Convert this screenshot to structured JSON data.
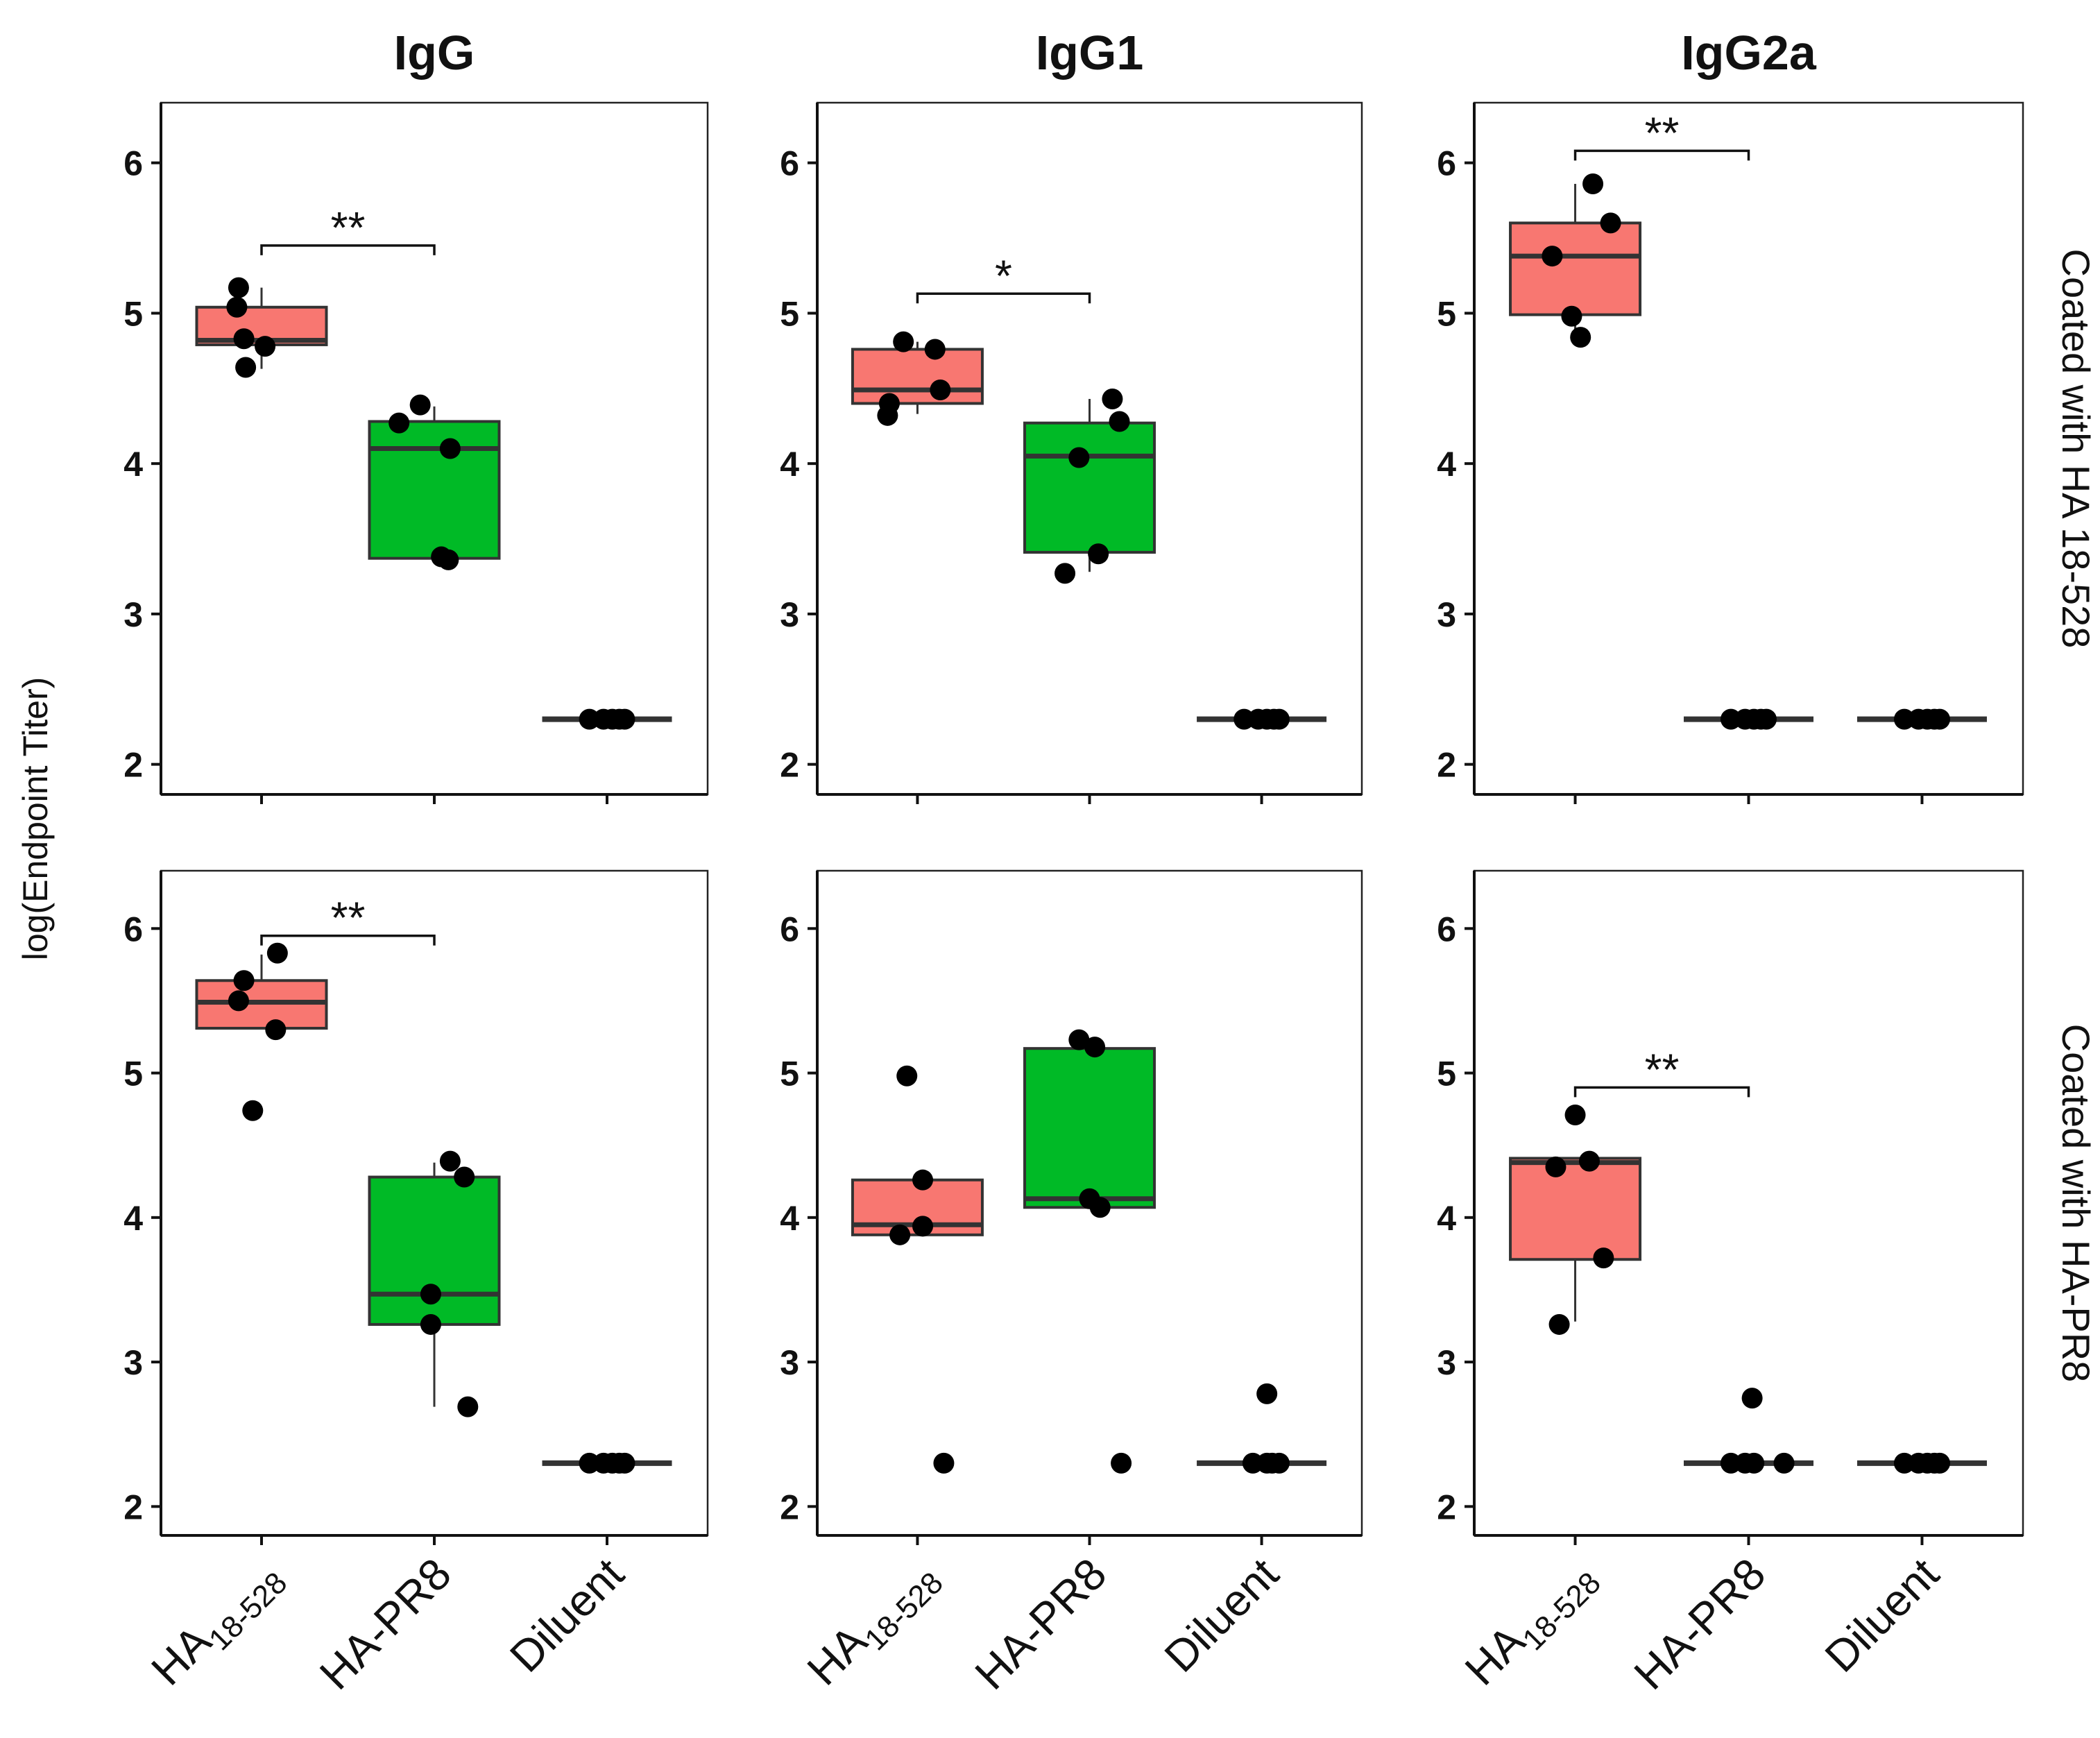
{
  "chart_data": {
    "type": "box",
    "y_label": "log(Endpoint Titer)",
    "ylim": [
      1.8,
      6.4
    ],
    "yticks": [
      "2",
      "3",
      "4",
      "5",
      "6"
    ],
    "categories": [
      {
        "main": "HA",
        "sub": "18-528"
      },
      {
        "main": "HA-PR8",
        "sub": ""
      },
      {
        "main": "Diluent",
        "sub": ""
      }
    ],
    "column_titles": [
      "IgG",
      "IgG1",
      "IgG2a"
    ],
    "row_labels": [
      "Coated with HA 18-528",
      "Coated with HA-PR8"
    ],
    "fill_colors": [
      "#f87771",
      "#00ba26",
      "#f87771"
    ],
    "panels": [
      {
        "row": 0,
        "col": 0,
        "groups": [
          {
            "q1": 4.79,
            "median": 4.82,
            "q3": 5.04,
            "whisker_low": 4.63,
            "whisker_high": 5.17,
            "points": [
              [
                -0.13,
                5.17
              ],
              [
                -0.14,
                5.04
              ],
              [
                -0.1,
                4.83
              ],
              [
                0.02,
                4.78
              ],
              [
                -0.09,
                4.64
              ]
            ]
          },
          {
            "q1": 3.37,
            "median": 4.1,
            "q3": 4.28,
            "whisker_low": 3.35,
            "whisker_high": 4.38,
            "points": [
              [
                -0.2,
                4.27
              ],
              [
                -0.08,
                4.39
              ],
              [
                0.09,
                4.1
              ],
              [
                0.04,
                3.38
              ],
              [
                0.08,
                3.36
              ]
            ]
          },
          {
            "q1": 2.3,
            "median": 2.3,
            "q3": 2.3,
            "whisker_low": 2.3,
            "whisker_high": 2.3,
            "points": [
              [
                -0.1,
                2.3
              ],
              [
                -0.02,
                2.3
              ],
              [
                0.03,
                2.3
              ],
              [
                0.07,
                2.3
              ],
              [
                0.1,
                2.3
              ]
            ]
          }
        ],
        "significance": [
          {
            "from": 0,
            "to": 1,
            "y": 5.45,
            "label": "**"
          }
        ]
      },
      {
        "row": 0,
        "col": 1,
        "groups": [
          {
            "q1": 4.4,
            "median": 4.49,
            "q3": 4.76,
            "whisker_low": 4.33,
            "whisker_high": 4.81,
            "points": [
              [
                -0.16,
                4.4
              ],
              [
                -0.08,
                4.81
              ],
              [
                0.1,
                4.76
              ],
              [
                0.13,
                4.49
              ],
              [
                -0.17,
                4.32
              ]
            ]
          },
          {
            "q1": 3.41,
            "median": 4.05,
            "q3": 4.27,
            "whisker_low": 3.28,
            "whisker_high": 4.43,
            "points": [
              [
                -0.06,
                4.04
              ],
              [
                0.13,
                4.43
              ],
              [
                0.17,
                4.28
              ],
              [
                0.05,
                3.4
              ],
              [
                -0.14,
                3.27
              ]
            ]
          },
          {
            "q1": 2.3,
            "median": 2.3,
            "q3": 2.3,
            "whisker_low": 2.3,
            "whisker_high": 2.3,
            "points": [
              [
                -0.1,
                2.3
              ],
              [
                -0.02,
                2.3
              ],
              [
                0.03,
                2.3
              ],
              [
                0.07,
                2.3
              ],
              [
                0.1,
                2.3
              ]
            ]
          }
        ],
        "significance": [
          {
            "from": 0,
            "to": 1,
            "y": 5.13,
            "label": "*"
          }
        ]
      },
      {
        "row": 0,
        "col": 2,
        "groups": [
          {
            "q1": 4.99,
            "median": 5.38,
            "q3": 5.6,
            "whisker_low": 4.84,
            "whisker_high": 5.86,
            "points": [
              [
                -0.13,
                5.38
              ],
              [
                0.1,
                5.86
              ],
              [
                0.2,
                5.6
              ],
              [
                -0.02,
                4.98
              ],
              [
                0.03,
                4.84
              ]
            ]
          },
          {
            "q1": 2.3,
            "median": 2.3,
            "q3": 2.3,
            "whisker_low": 2.3,
            "whisker_high": 2.3,
            "points": [
              [
                -0.1,
                2.3
              ],
              [
                -0.02,
                2.3
              ],
              [
                0.03,
                2.3
              ],
              [
                0.07,
                2.3
              ],
              [
                0.1,
                2.3
              ]
            ]
          },
          {
            "q1": 2.3,
            "median": 2.3,
            "q3": 2.3,
            "whisker_low": 2.3,
            "whisker_high": 2.3,
            "points": [
              [
                -0.1,
                2.3
              ],
              [
                -0.02,
                2.3
              ],
              [
                0.03,
                2.3
              ],
              [
                0.07,
                2.3
              ],
              [
                0.1,
                2.3
              ]
            ]
          }
        ],
        "significance": [
          {
            "from": 0,
            "to": 1,
            "y": 6.08,
            "label": "**"
          }
        ]
      },
      {
        "row": 1,
        "col": 0,
        "groups": [
          {
            "q1": 5.31,
            "median": 5.49,
            "q3": 5.64,
            "whisker_low": 5.31,
            "whisker_high": 5.82,
            "points": [
              [
                -0.1,
                5.64
              ],
              [
                0.09,
                5.83
              ],
              [
                -0.13,
                5.5
              ],
              [
                0.08,
                5.3
              ],
              [
                -0.05,
                4.74
              ]
            ]
          },
          {
            "q1": 3.26,
            "median": 3.47,
            "q3": 4.28,
            "whisker_low": 2.69,
            "whisker_high": 4.38,
            "points": [
              [
                0.09,
                4.39
              ],
              [
                0.17,
                4.28
              ],
              [
                -0.02,
                3.47
              ],
              [
                -0.02,
                3.26
              ],
              [
                0.19,
                2.69
              ]
            ]
          },
          {
            "q1": 2.3,
            "median": 2.3,
            "q3": 2.3,
            "whisker_low": 2.3,
            "whisker_high": 2.3,
            "points": [
              [
                -0.1,
                2.3
              ],
              [
                -0.02,
                2.3
              ],
              [
                0.03,
                2.3
              ],
              [
                0.07,
                2.3
              ],
              [
                0.1,
                2.3
              ]
            ]
          }
        ],
        "significance": [
          {
            "from": 0,
            "to": 1,
            "y": 5.95,
            "label": "**"
          }
        ]
      },
      {
        "row": 1,
        "col": 1,
        "groups": [
          {
            "q1": 3.88,
            "median": 3.95,
            "q3": 4.26,
            "whisker_low": 3.88,
            "whisker_high": 4.26,
            "points": [
              [
                -0.06,
                4.98
              ],
              [
                0.03,
                4.26
              ],
              [
                0.03,
                3.94
              ],
              [
                -0.1,
                3.88
              ],
              [
                0.15,
                2.3
              ]
            ]
          },
          {
            "q1": 4.07,
            "median": 4.13,
            "q3": 5.17,
            "whisker_low": 4.07,
            "whisker_high": 5.17,
            "points": [
              [
                -0.06,
                5.23
              ],
              [
                0.03,
                5.18
              ],
              [
                0.0,
                4.13
              ],
              [
                0.06,
                4.07
              ],
              [
                0.18,
                2.3
              ]
            ]
          },
          {
            "q1": 2.3,
            "median": 2.3,
            "q3": 2.3,
            "whisker_low": 2.3,
            "whisker_high": 2.3,
            "points": [
              [
                -0.05,
                2.3
              ],
              [
                0.03,
                2.3
              ],
              [
                0.06,
                2.3
              ],
              [
                0.1,
                2.3
              ],
              [
                0.03,
                2.78
              ]
            ]
          }
        ],
        "significance": []
      },
      {
        "row": 1,
        "col": 2,
        "groups": [
          {
            "q1": 3.71,
            "median": 4.38,
            "q3": 4.41,
            "whisker_low": 3.28,
            "whisker_high": 4.41,
            "points": [
              [
                0.0,
                4.71
              ],
              [
                -0.11,
                4.35
              ],
              [
                0.08,
                4.39
              ],
              [
                0.16,
                3.72
              ],
              [
                -0.09,
                3.26
              ]
            ]
          },
          {
            "q1": 2.3,
            "median": 2.3,
            "q3": 2.3,
            "whisker_low": 2.3,
            "whisker_high": 2.3,
            "points": [
              [
                -0.1,
                2.3
              ],
              [
                -0.02,
                2.3
              ],
              [
                0.03,
                2.3
              ],
              [
                0.2,
                2.3
              ],
              [
                0.02,
                2.75
              ]
            ]
          },
          {
            "q1": 2.3,
            "median": 2.3,
            "q3": 2.3,
            "whisker_low": 2.3,
            "whisker_high": 2.3,
            "points": [
              [
                -0.1,
                2.3
              ],
              [
                -0.02,
                2.3
              ],
              [
                0.03,
                2.3
              ],
              [
                0.07,
                2.3
              ],
              [
                0.1,
                2.3
              ]
            ]
          }
        ],
        "significance": [
          {
            "from": 0,
            "to": 1,
            "y": 4.9,
            "label": "**"
          }
        ]
      }
    ]
  }
}
